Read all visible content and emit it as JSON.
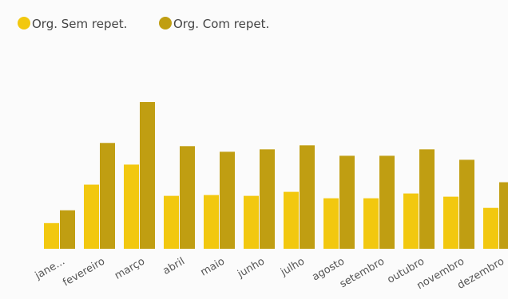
{
  "chart_data": {
    "type": "bar",
    "title": "",
    "xlabel": "",
    "ylabel": "",
    "categories": [
      "jane...",
      "fevereiro",
      "março",
      "abril",
      "maio",
      "junho",
      "julho",
      "agosto",
      "setembro",
      "outubro",
      "novembro",
      "dezembro"
    ],
    "series": [
      {
        "name": "Org. Sem repet.",
        "color": "#f2c80f",
        "values": [
          32,
          80,
          105,
          66,
          67,
          66,
          71,
          63,
          63,
          69,
          65,
          51
        ]
      },
      {
        "name": "Org. Com repet.",
        "color": "#c09e12",
        "values": [
          48,
          132,
          183,
          128,
          121,
          124,
          129,
          116,
          116,
          124,
          111,
          83
        ]
      }
    ],
    "ylim": [
      0,
      200
    ],
    "grid": false,
    "legend": "top-left"
  }
}
